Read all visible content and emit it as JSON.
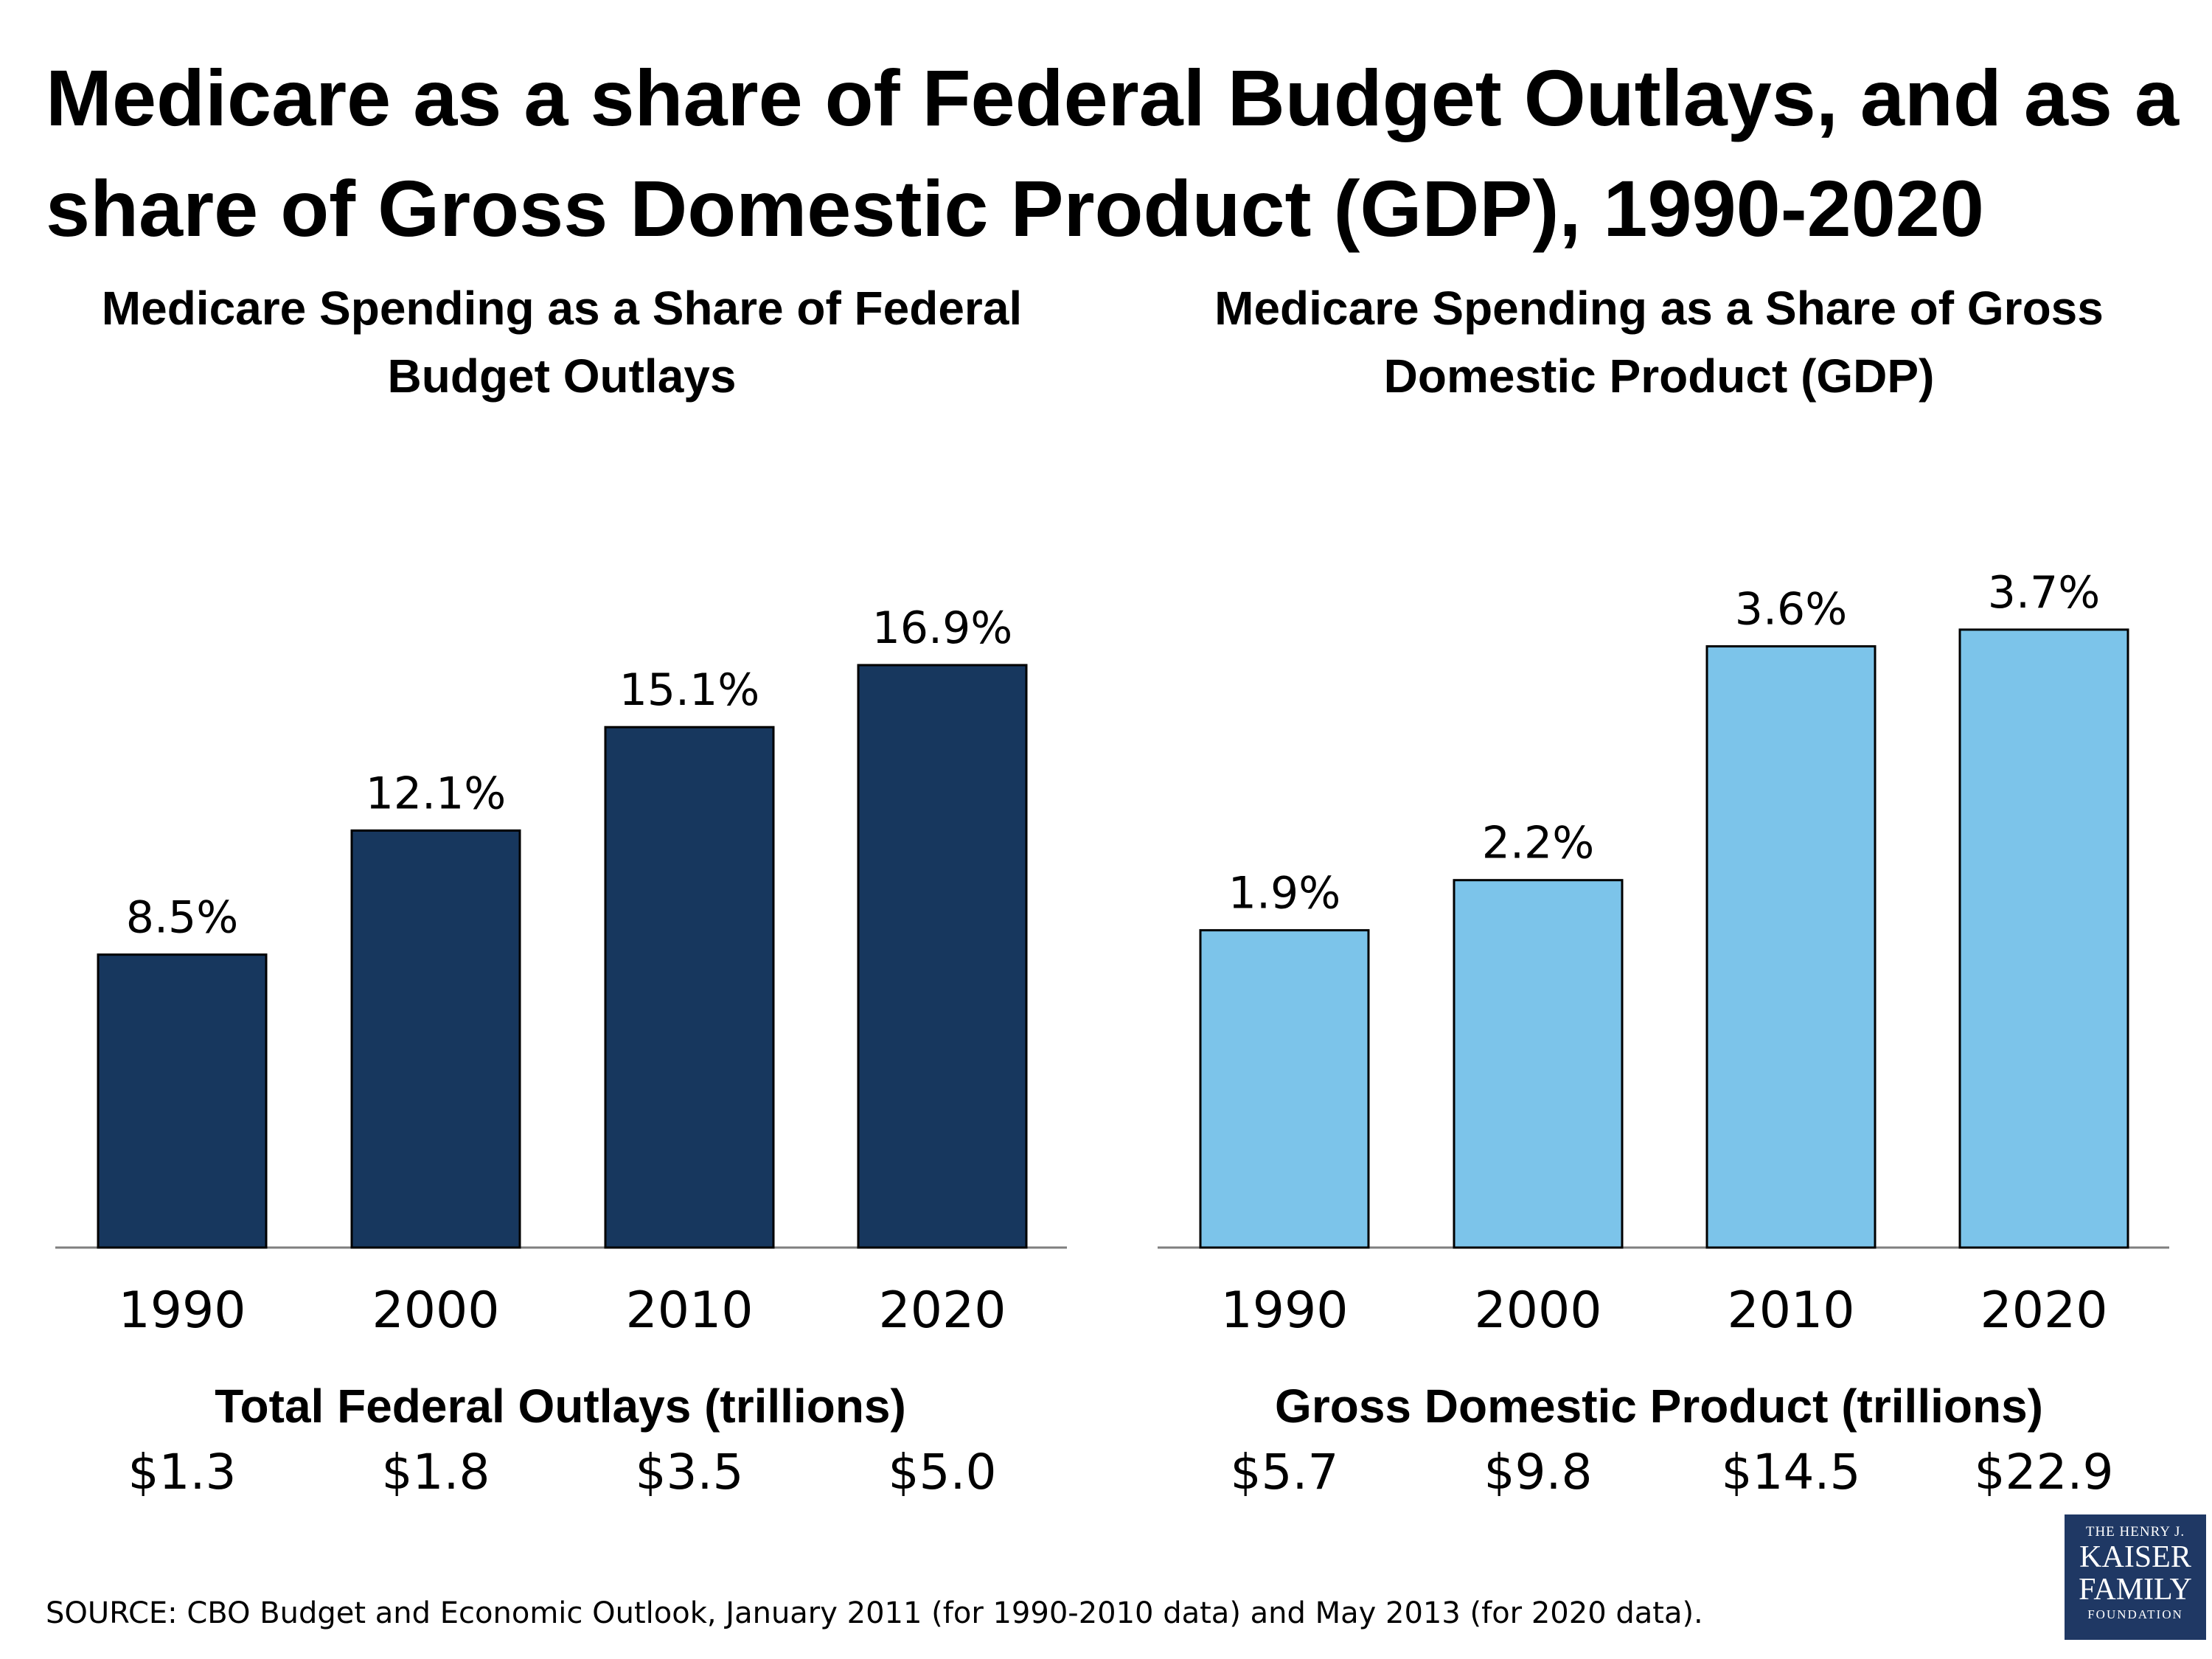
{
  "title": "Medicare as a share of Federal Budget Outlays, and as a share of Gross Domestic Product (GDP), 1990-2020",
  "source": "SOURCE: CBO Budget and Economic Outlook, January 2011 (for 1990-2010 data) and May 2013 (for 2020 data).",
  "logo": {
    "line1": "THE HENRY J.",
    "line2": "KAISER",
    "line3": "FAMILY",
    "line4": "FOUNDATION"
  },
  "chart_data": [
    {
      "type": "bar",
      "title": "Medicare Spending as a Share of Federal Budget Outlays",
      "categories": [
        "1990",
        "2000",
        "2010",
        "2020"
      ],
      "values": [
        8.5,
        12.1,
        15.1,
        16.9
      ],
      "data_labels": [
        "8.5%",
        "12.1%",
        "15.1%",
        "16.9%"
      ],
      "unit": "%",
      "color": "#17375e",
      "ylim": [
        0,
        20.11
      ],
      "footer": {
        "title": "Total Federal Outlays (trillions)",
        "values": [
          "$1.3",
          "$1.8",
          "$3.5",
          "$5.0"
        ]
      }
    },
    {
      "type": "bar",
      "title": "Medicare Spending as a Share of Gross Domestic Product (GDP)",
      "categories": [
        "1990",
        "2000",
        "2010",
        "2020"
      ],
      "values": [
        1.9,
        2.2,
        3.6,
        3.7
      ],
      "data_labels": [
        "1.9%",
        "2.2%",
        "3.6%",
        "3.7%"
      ],
      "unit": "%",
      "color": "#7cc4ea",
      "ylim": [
        0,
        4.15
      ],
      "footer": {
        "title": "Gross Domestic Product (trillions)",
        "values": [
          "$5.7",
          "$9.8",
          "$14.5",
          "$22.9"
        ]
      }
    }
  ]
}
